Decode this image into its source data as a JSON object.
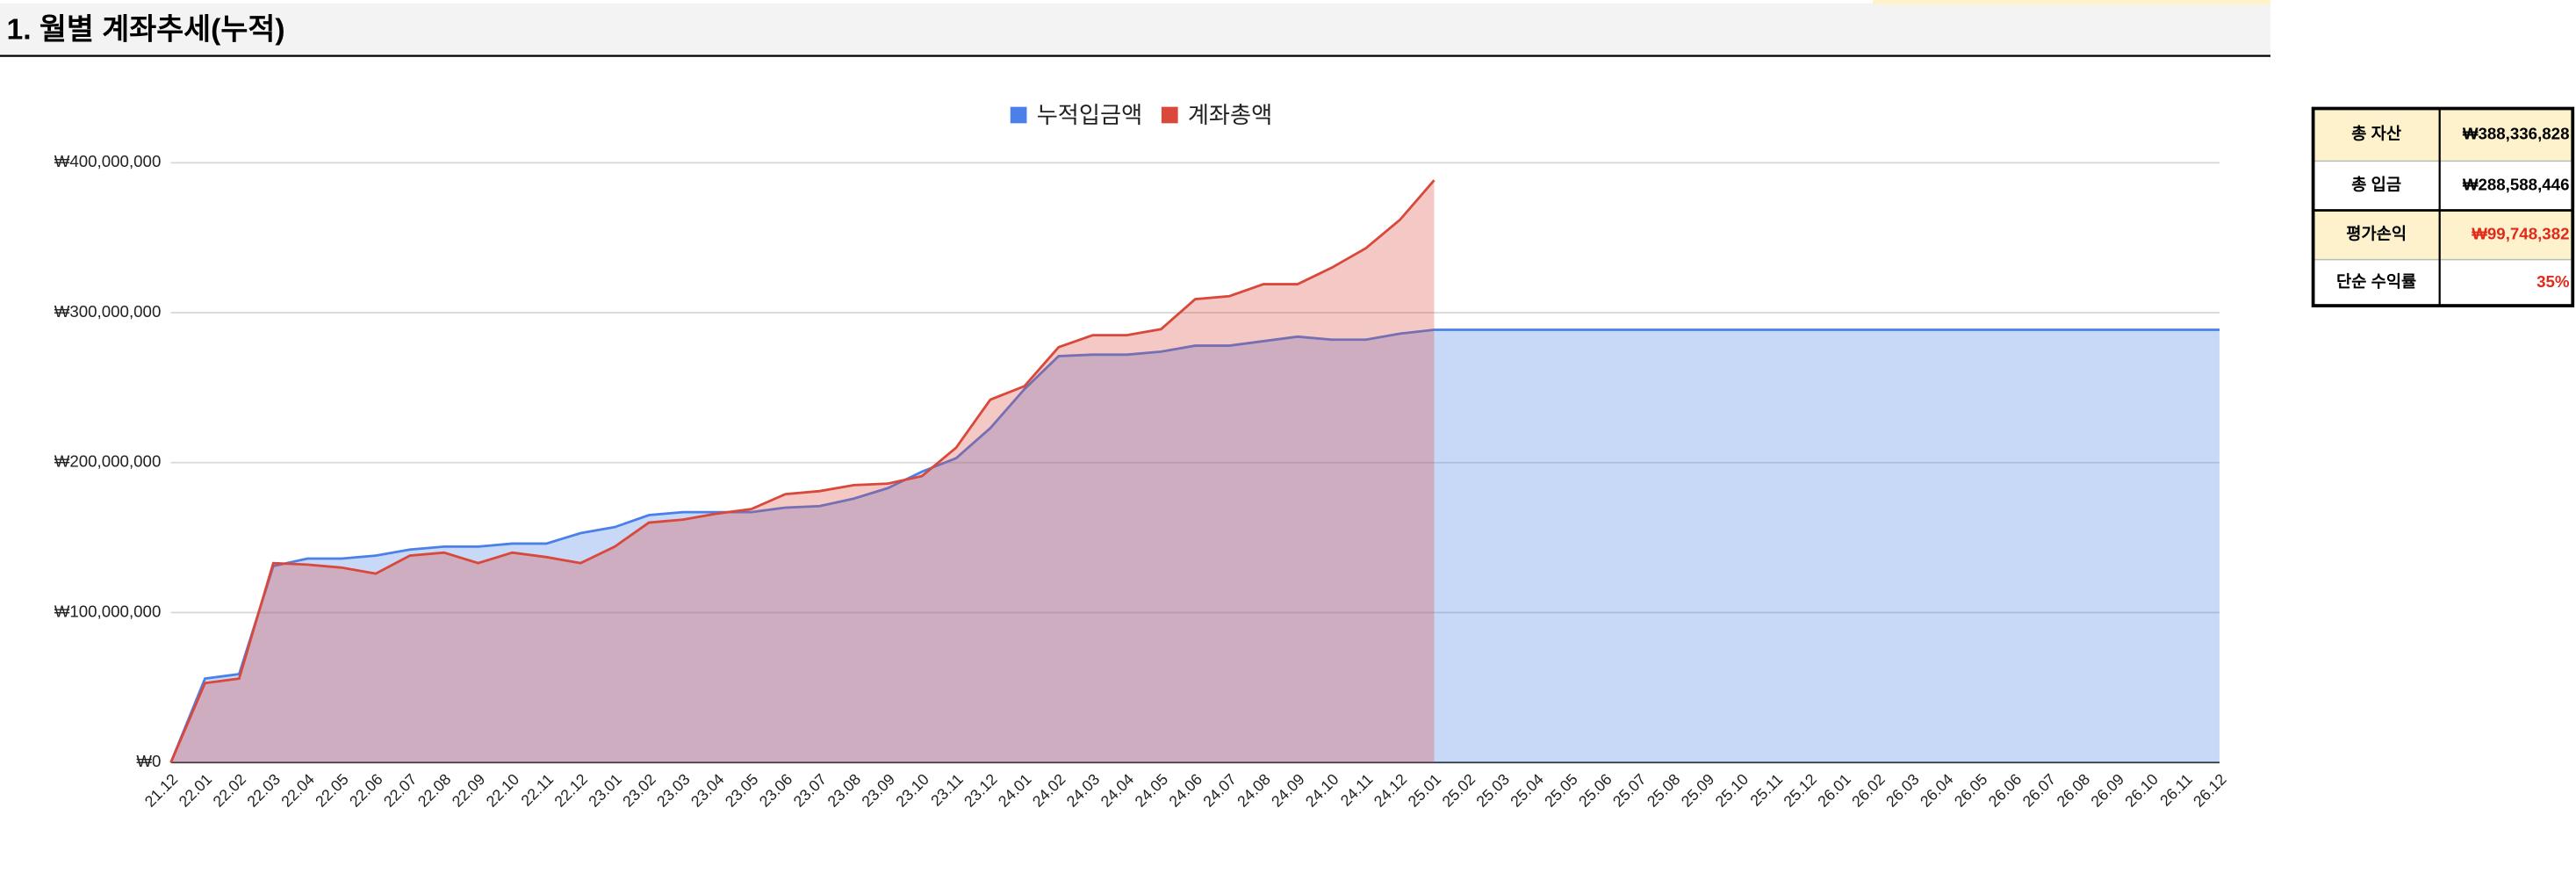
{
  "header": {
    "title": "1. 월별 계좌추세(누적)"
  },
  "summary": {
    "rows": [
      [
        "총 자산",
        "₩388,336,828"
      ],
      [
        "총 입금",
        "₩288,588,446"
      ],
      [
        "평가손익",
        "₩99,748,382"
      ],
      [
        "단순 수익률",
        "35%"
      ]
    ]
  },
  "chart_data": {
    "type": "area",
    "categories": [
      "21.12",
      "22.01",
      "22.02",
      "22.03",
      "22.04",
      "22.05",
      "22.06",
      "22.07",
      "22.08",
      "22.09",
      "22.10",
      "22.11",
      "22.12",
      "23.01",
      "23.02",
      "23.03",
      "23.04",
      "23.05",
      "23.06",
      "23.07",
      "23.08",
      "23.09",
      "23.10",
      "23.11",
      "23.12",
      "24.01",
      "24.02",
      "24.03",
      "24.04",
      "24.05",
      "24.06",
      "24.07",
      "24.08",
      "24.09",
      "24.10",
      "24.11",
      "24.12",
      "25.01",
      "25.02",
      "25.03",
      "25.04",
      "25.05",
      "25.06",
      "25.07",
      "25.08",
      "25.09",
      "25.10",
      "25.11",
      "25.12",
      "26.01",
      "26.02",
      "26.03",
      "26.04",
      "26.05",
      "26.06",
      "26.07",
      "26.08",
      "26.09",
      "26.10",
      "26.11",
      "26.12"
    ],
    "series": [
      {
        "name": "누적입금액",
        "color": "#4a80e8",
        "values": [
          0,
          56000000,
          59000000,
          131000000,
          136000000,
          136000000,
          138000000,
          142000000,
          144000000,
          144000000,
          146000000,
          146000000,
          153000000,
          157000000,
          165000000,
          167000000,
          167000000,
          167000000,
          170000000,
          171000000,
          176000000,
          183000000,
          194000000,
          203000000,
          223000000,
          249000000,
          271000000,
          272000000,
          272000000,
          274000000,
          278000000,
          278000000,
          281000000,
          284000000,
          282000000,
          282000000,
          286000000,
          288588446,
          288588446,
          288588446,
          288588446,
          288588446,
          288588446,
          288588446,
          288588446,
          288588446,
          288588446,
          288588446,
          288588446,
          288588446,
          288588446,
          288588446,
          288588446,
          288588446,
          288588446,
          288588446,
          288588446,
          288588446,
          288588446,
          288588446,
          288588446
        ]
      },
      {
        "name": "계좌총액",
        "color": "#d9483b",
        "values": [
          0,
          53000000,
          56000000,
          133000000,
          132000000,
          130000000,
          126000000,
          138000000,
          140000000,
          133000000,
          140000000,
          137000000,
          133000000,
          144000000,
          160000000,
          162000000,
          166000000,
          169000000,
          179000000,
          181000000,
          185000000,
          186000000,
          191000000,
          210000000,
          242000000,
          251000000,
          277000000,
          285000000,
          285000000,
          289000000,
          309000000,
          311000000,
          319000000,
          319000000,
          330000000,
          343000000,
          362000000,
          388336828,
          null,
          null,
          null,
          null,
          null,
          null,
          null,
          null,
          null,
          null,
          null,
          null,
          null,
          null,
          null,
          null,
          null,
          null,
          null,
          null,
          null,
          null,
          null
        ]
      }
    ],
    "ylim": [
      0,
      400000000
    ],
    "yticks": [
      {
        "value": 0,
        "label": "₩0"
      },
      {
        "value": 100000000,
        "label": "₩100,000,000"
      },
      {
        "value": 200000000,
        "label": "₩200,000,000"
      },
      {
        "value": 300000000,
        "label": "₩300,000,000"
      },
      {
        "value": 400000000,
        "label": "₩400,000,000"
      }
    ],
    "grid": true,
    "legend": "top"
  }
}
